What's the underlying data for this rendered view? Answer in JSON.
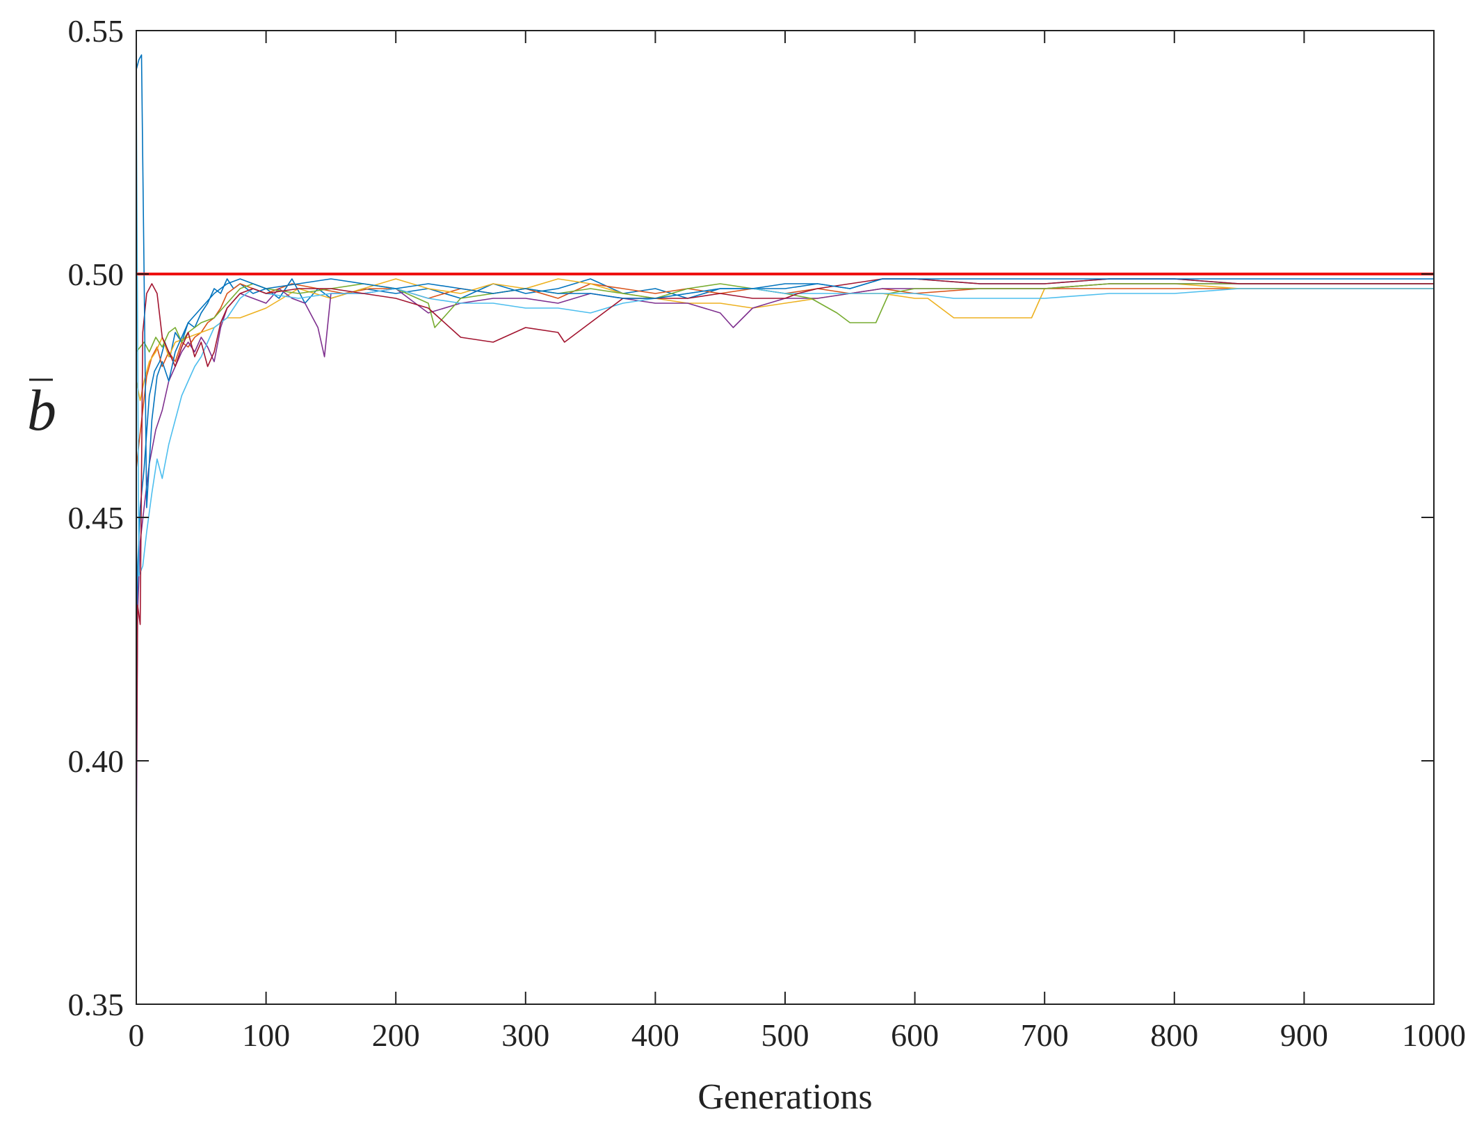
{
  "chart_data": {
    "type": "line",
    "title": "",
    "xlabel": "Generations",
    "ylabel": "b",
    "ylabel_overbar": true,
    "xlim": [
      0,
      1000
    ],
    "ylim": [
      0.35,
      0.55
    ],
    "xticks": [
      0,
      100,
      200,
      300,
      400,
      500,
      600,
      700,
      800,
      900,
      1000
    ],
    "xtick_labels": [
      "0",
      "100",
      "200",
      "300",
      "400",
      "500",
      "600",
      "700",
      "800",
      "900",
      "1000"
    ],
    "yticks": [
      0.35,
      0.4,
      0.45,
      0.5,
      0.55
    ],
    "ytick_labels": [
      "0.35",
      "0.40",
      "0.45",
      "0.50",
      "0.55"
    ],
    "grid": false,
    "legend": "none",
    "reference_line": {
      "y": 0.5,
      "color": "#ee1111"
    },
    "series": [
      {
        "color": "#0072BD",
        "x": [
          0,
          1,
          3,
          6,
          10,
          14,
          18,
          22,
          26,
          30,
          35,
          40,
          45,
          50,
          55,
          60,
          65,
          70,
          75,
          80,
          90,
          100,
          110,
          120,
          130,
          140,
          150,
          175,
          200,
          225,
          250,
          275,
          300,
          325,
          350,
          375,
          400,
          425,
          450,
          475,
          500,
          525,
          550,
          575,
          600,
          650,
          700,
          750,
          800,
          850,
          900,
          950,
          1000
        ],
        "y": [
          0.388,
          0.44,
          0.452,
          0.46,
          0.475,
          0.48,
          0.482,
          0.486,
          0.483,
          0.488,
          0.486,
          0.49,
          0.489,
          0.492,
          0.494,
          0.497,
          0.496,
          0.499,
          0.497,
          0.498,
          0.496,
          0.497,
          0.495,
          0.499,
          0.494,
          0.497,
          0.495,
          0.497,
          0.496,
          0.497,
          0.495,
          0.498,
          0.496,
          0.497,
          0.499,
          0.496,
          0.497,
          0.495,
          0.497,
          0.497,
          0.497,
          0.498,
          0.497,
          0.499,
          0.499,
          0.498,
          0.498,
          0.499,
          0.499,
          0.498,
          0.498,
          0.498,
          0.498
        ]
      },
      {
        "color": "#D95319",
        "x": [
          0,
          2,
          5,
          8,
          12,
          16,
          20,
          25,
          30,
          35,
          40,
          45,
          50,
          55,
          60,
          65,
          70,
          75,
          80,
          90,
          100,
          120,
          140,
          160,
          180,
          200,
          225,
          250,
          275,
          300,
          325,
          350,
          375,
          400,
          425,
          450,
          475,
          500,
          525,
          550,
          575,
          600,
          650,
          700,
          750,
          800,
          850,
          900,
          950,
          1000
        ],
        "y": [
          0.46,
          0.465,
          0.472,
          0.479,
          0.483,
          0.485,
          0.481,
          0.484,
          0.482,
          0.486,
          0.485,
          0.487,
          0.488,
          0.49,
          0.491,
          0.493,
          0.496,
          0.497,
          0.498,
          0.497,
          0.496,
          0.498,
          0.497,
          0.496,
          0.497,
          0.497,
          0.495,
          0.497,
          0.496,
          0.497,
          0.495,
          0.498,
          0.497,
          0.496,
          0.497,
          0.496,
          0.497,
          0.496,
          0.497,
          0.496,
          0.497,
          0.496,
          0.497,
          0.497,
          0.497,
          0.497,
          0.497,
          0.497,
          0.497,
          0.497
        ]
      },
      {
        "color": "#EDB120",
        "x": [
          0,
          3,
          6,
          10,
          15,
          20,
          25,
          30,
          40,
          50,
          60,
          70,
          80,
          100,
          125,
          150,
          175,
          200,
          225,
          250,
          275,
          300,
          325,
          350,
          375,
          400,
          425,
          450,
          475,
          500,
          525,
          550,
          575,
          600,
          610,
          630,
          650,
          690,
          700,
          750,
          800,
          850,
          900,
          950,
          1000
        ],
        "y": [
          0.478,
          0.474,
          0.478,
          0.482,
          0.484,
          0.487,
          0.483,
          0.486,
          0.487,
          0.488,
          0.489,
          0.491,
          0.491,
          0.493,
          0.497,
          0.495,
          0.497,
          0.499,
          0.497,
          0.496,
          0.498,
          0.497,
          0.499,
          0.498,
          0.496,
          0.495,
          0.494,
          0.494,
          0.493,
          0.494,
          0.495,
          0.496,
          0.496,
          0.495,
          0.495,
          0.491,
          0.491,
          0.491,
          0.497,
          0.498,
          0.498,
          0.497,
          0.497,
          0.497,
          0.497
        ]
      },
      {
        "color": "#7E2F8E",
        "x": [
          0,
          1,
          3,
          6,
          10,
          15,
          20,
          25,
          30,
          35,
          40,
          45,
          50,
          55,
          60,
          65,
          70,
          80,
          90,
          100,
          110,
          120,
          130,
          140,
          145,
          150,
          175,
          200,
          225,
          250,
          275,
          300,
          325,
          350,
          375,
          400,
          425,
          450,
          460,
          475,
          500,
          525,
          550,
          575,
          600,
          650,
          700,
          750,
          800,
          850,
          900,
          950,
          1000
        ],
        "y": [
          0.378,
          0.43,
          0.445,
          0.452,
          0.461,
          0.468,
          0.472,
          0.478,
          0.481,
          0.484,
          0.486,
          0.484,
          0.487,
          0.485,
          0.482,
          0.489,
          0.493,
          0.496,
          0.495,
          0.494,
          0.497,
          0.495,
          0.494,
          0.489,
          0.483,
          0.496,
          0.496,
          0.497,
          0.492,
          0.494,
          0.495,
          0.495,
          0.494,
          0.496,
          0.495,
          0.494,
          0.494,
          0.492,
          0.489,
          0.493,
          0.495,
          0.495,
          0.496,
          0.497,
          0.497,
          0.497,
          0.497,
          0.498,
          0.498,
          0.498,
          0.498,
          0.498,
          0.498
        ]
      },
      {
        "color": "#77AC30",
        "x": [
          0,
          3,
          6,
          10,
          15,
          20,
          25,
          30,
          35,
          40,
          50,
          60,
          70,
          80,
          90,
          100,
          125,
          150,
          175,
          200,
          225,
          230,
          250,
          275,
          300,
          325,
          350,
          375,
          400,
          425,
          450,
          475,
          500,
          520,
          540,
          550,
          560,
          570,
          580,
          600,
          650,
          700,
          750,
          800,
          850,
          900,
          950,
          1000
        ],
        "y": [
          0.484,
          0.485,
          0.486,
          0.484,
          0.487,
          0.485,
          0.488,
          0.489,
          0.486,
          0.488,
          0.49,
          0.491,
          0.494,
          0.497,
          0.498,
          0.497,
          0.496,
          0.497,
          0.498,
          0.497,
          0.494,
          0.489,
          0.495,
          0.496,
          0.497,
          0.496,
          0.497,
          0.496,
          0.495,
          0.497,
          0.498,
          0.497,
          0.496,
          0.495,
          0.492,
          0.49,
          0.49,
          0.49,
          0.496,
          0.497,
          0.497,
          0.497,
          0.498,
          0.498,
          0.498,
          0.498,
          0.498,
          0.498
        ]
      },
      {
        "color": "#4DBEEE",
        "x": [
          0,
          2,
          5,
          8,
          12,
          16,
          20,
          25,
          30,
          35,
          40,
          45,
          50,
          55,
          60,
          65,
          70,
          80,
          90,
          100,
          125,
          150,
          175,
          200,
          225,
          250,
          275,
          300,
          325,
          350,
          375,
          400,
          425,
          450,
          475,
          500,
          525,
          550,
          575,
          600,
          630,
          650,
          700,
          750,
          800,
          850,
          900,
          950,
          1000
        ],
        "y": [
          0.54,
          0.438,
          0.44,
          0.447,
          0.455,
          0.462,
          0.458,
          0.465,
          0.47,
          0.475,
          0.478,
          0.481,
          0.483,
          0.486,
          0.489,
          0.49,
          0.491,
          0.495,
          0.497,
          0.496,
          0.495,
          0.496,
          0.496,
          0.497,
          0.495,
          0.494,
          0.494,
          0.493,
          0.493,
          0.492,
          0.494,
          0.495,
          0.496,
          0.497,
          0.497,
          0.496,
          0.496,
          0.496,
          0.496,
          0.496,
          0.495,
          0.495,
          0.495,
          0.496,
          0.496,
          0.497,
          0.497,
          0.497,
          0.497
        ]
      },
      {
        "color": "#A2142F",
        "x": [
          0,
          1,
          3,
          5,
          8,
          12,
          16,
          20,
          25,
          30,
          35,
          40,
          45,
          50,
          55,
          60,
          65,
          70,
          80,
          90,
          100,
          125,
          150,
          175,
          200,
          225,
          250,
          275,
          300,
          325,
          330,
          350,
          375,
          400,
          425,
          450,
          475,
          500,
          510,
          525,
          550,
          575,
          600,
          650,
          700,
          750,
          800,
          850,
          900,
          950,
          1000
        ],
        "y": [
          0.39,
          0.432,
          0.428,
          0.488,
          0.496,
          0.498,
          0.496,
          0.487,
          0.484,
          0.481,
          0.485,
          0.488,
          0.483,
          0.486,
          0.481,
          0.484,
          0.49,
          0.493,
          0.496,
          0.497,
          0.496,
          0.497,
          0.497,
          0.496,
          0.495,
          0.493,
          0.487,
          0.486,
          0.489,
          0.488,
          0.486,
          0.49,
          0.495,
          0.495,
          0.495,
          0.496,
          0.495,
          0.495,
          0.496,
          0.497,
          0.498,
          0.499,
          0.499,
          0.498,
          0.498,
          0.499,
          0.499,
          0.498,
          0.498,
          0.498,
          0.498
        ]
      },
      {
        "color": "#0072BD",
        "x": [
          0,
          1,
          2,
          4,
          6,
          8,
          12,
          16,
          20,
          25,
          30,
          35,
          40,
          50,
          60,
          70,
          80,
          100,
          125,
          150,
          175,
          200,
          225,
          250,
          275,
          300,
          325,
          350,
          375,
          400,
          425,
          450,
          475,
          500,
          525,
          550,
          575,
          600,
          650,
          700,
          750,
          800,
          850,
          900,
          950,
          1000
        ],
        "y": [
          0.542,
          0.543,
          0.544,
          0.545,
          0.5,
          0.452,
          0.47,
          0.479,
          0.482,
          0.478,
          0.484,
          0.487,
          0.49,
          0.493,
          0.496,
          0.498,
          0.499,
          0.497,
          0.498,
          0.499,
          0.498,
          0.497,
          0.498,
          0.497,
          0.496,
          0.497,
          0.496,
          0.496,
          0.495,
          0.495,
          0.496,
          0.497,
          0.497,
          0.498,
          0.498,
          0.497,
          0.499,
          0.499,
          0.499,
          0.499,
          0.499,
          0.499,
          0.499,
          0.499,
          0.499,
          0.499
        ]
      }
    ]
  }
}
